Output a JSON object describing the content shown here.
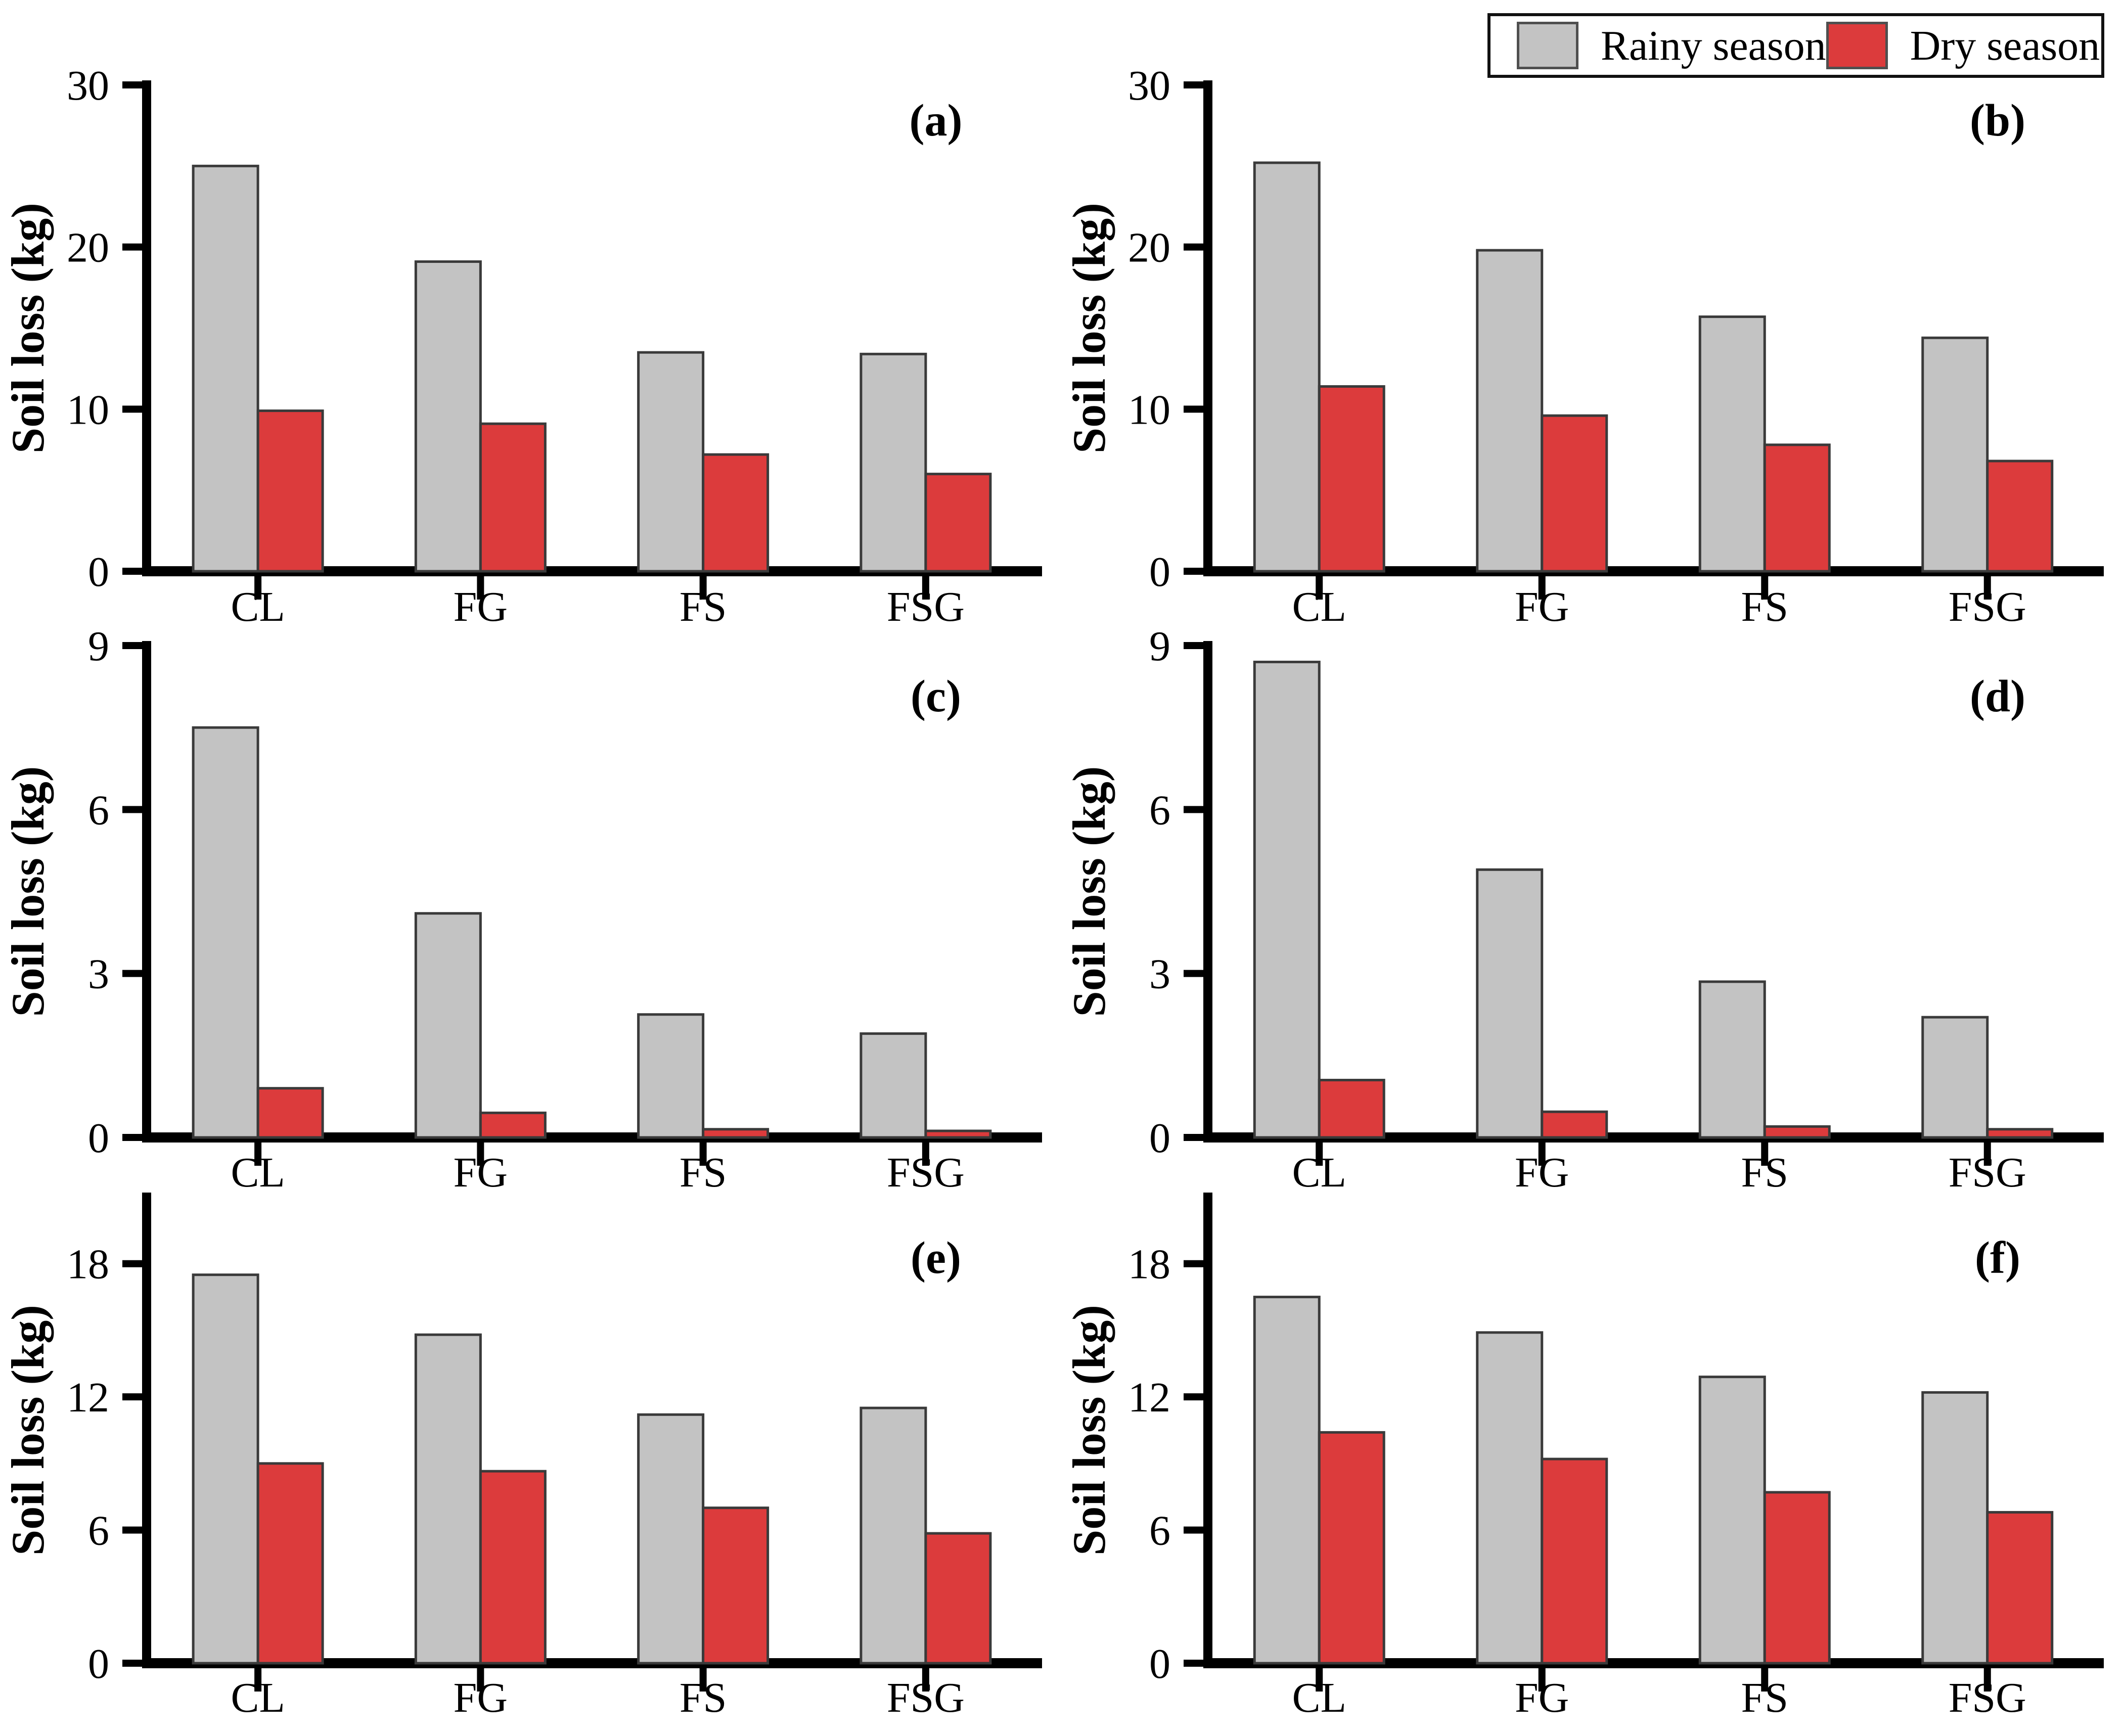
{
  "figure": {
    "ylabel": "Soil loss (kg)",
    "categories": [
      "CL",
      "FG",
      "FS",
      "FSG"
    ],
    "legend": {
      "items": [
        {
          "label": "Rainy season",
          "color": "#C3C3C3"
        },
        {
          "label": "Dry season",
          "color": "#DC3B3C"
        }
      ]
    },
    "colors": {
      "rainy": "#C3C3C3",
      "dry": "#DC3B3C",
      "bar_edge": "#3A3A3A",
      "axis": "#000000",
      "text": "#000000"
    }
  },
  "chart_data": [
    {
      "type": "bar",
      "panel": "(a)",
      "categories": [
        "CL",
        "FG",
        "FS",
        "FSG"
      ],
      "ylabel": "Soil loss (kg)",
      "ylim": [
        0,
        30
      ],
      "yticks": [
        0,
        10,
        20,
        30
      ],
      "legend_position": "top-right-outside",
      "grid": false,
      "series": [
        {
          "name": "Rainy season",
          "values": [
            25.0,
            19.1,
            13.5,
            13.4
          ]
        },
        {
          "name": "Dry season",
          "values": [
            9.9,
            9.1,
            7.2,
            6.0
          ]
        }
      ]
    },
    {
      "type": "bar",
      "panel": "(b)",
      "categories": [
        "CL",
        "FG",
        "FS",
        "FSG"
      ],
      "ylabel": "Soil loss (kg)",
      "ylim": [
        0,
        30
      ],
      "yticks": [
        0,
        10,
        20,
        30
      ],
      "grid": false,
      "series": [
        {
          "name": "Rainy season",
          "values": [
            25.2,
            19.8,
            15.7,
            14.4
          ]
        },
        {
          "name": "Dry season",
          "values": [
            11.4,
            9.6,
            7.8,
            6.8
          ]
        }
      ]
    },
    {
      "type": "bar",
      "panel": "(c)",
      "categories": [
        "CL",
        "FG",
        "FS",
        "FSG"
      ],
      "ylabel": "Soil loss (kg)",
      "ylim": [
        0,
        9
      ],
      "yticks": [
        0,
        3,
        6,
        9
      ],
      "grid": false,
      "series": [
        {
          "name": "Rainy season",
          "values": [
            7.5,
            4.1,
            2.25,
            1.9
          ]
        },
        {
          "name": "Dry season",
          "values": [
            0.9,
            0.45,
            0.15,
            0.12
          ]
        }
      ]
    },
    {
      "type": "bar",
      "panel": "(d)",
      "categories": [
        "CL",
        "FG",
        "FS",
        "FSG"
      ],
      "ylabel": "Soil loss (kg)",
      "ylim": [
        0,
        9
      ],
      "yticks": [
        0,
        3,
        6,
        9
      ],
      "grid": false,
      "series": [
        {
          "name": "Rainy season",
          "values": [
            8.7,
            4.9,
            2.85,
            2.2
          ]
        },
        {
          "name": "Dry season",
          "values": [
            1.05,
            0.47,
            0.2,
            0.15
          ]
        }
      ]
    },
    {
      "type": "bar",
      "panel": "(e)",
      "categories": [
        "CL",
        "FG",
        "FS",
        "FSG"
      ],
      "ylabel": "Soil loss (kg)",
      "ylim": [
        0,
        21
      ],
      "yticks": [
        0,
        6,
        12,
        18
      ],
      "grid": false,
      "series": [
        {
          "name": "Rainy season",
          "values": [
            17.5,
            14.8,
            11.2,
            11.5
          ]
        },
        {
          "name": "Dry season",
          "values": [
            9.0,
            8.65,
            7.0,
            5.85
          ]
        }
      ]
    },
    {
      "type": "bar",
      "panel": "(f)",
      "categories": [
        "CL",
        "FG",
        "FS",
        "FSG"
      ],
      "ylabel": "Soil loss (kg)",
      "ylim": [
        0,
        21
      ],
      "yticks": [
        0,
        6,
        12,
        18
      ],
      "grid": false,
      "series": [
        {
          "name": "Rainy season",
          "values": [
            16.5,
            14.9,
            12.9,
            12.2
          ]
        },
        {
          "name": "Dry season",
          "values": [
            10.4,
            9.2,
            7.7,
            6.8
          ]
        }
      ]
    }
  ]
}
